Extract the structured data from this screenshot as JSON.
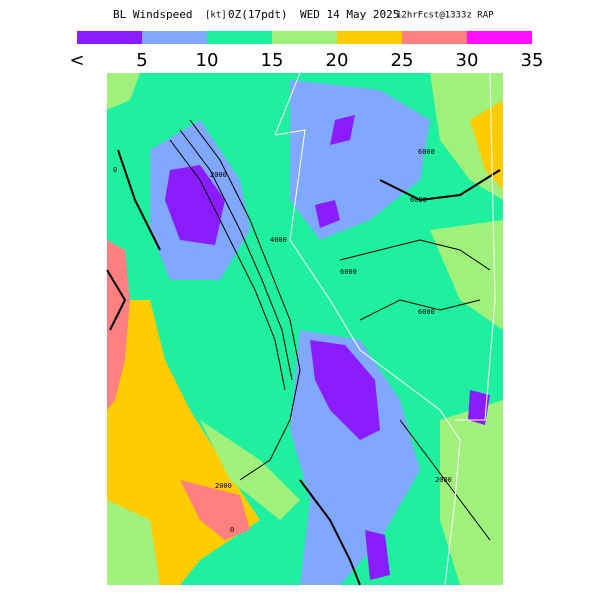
{
  "header": {
    "title": "BL Windspeed",
    "units": "[kt]",
    "time": "0Z(17pdt)",
    "date": "WED 14 May 2025",
    "forecast": "12hrFcst@1333z RAP"
  },
  "legend": {
    "labels": [
      "<",
      "5",
      "10",
      "15",
      "20",
      "25",
      "30",
      "35"
    ],
    "colors": [
      "#8a1cff",
      "#80a8ff",
      "#1ff0a0",
      "#a0f07c",
      "#ffcc00",
      "#ff8080",
      "#ff10ff"
    ]
  },
  "map": {
    "contour_labels": [
      "6000",
      "6000",
      "6000",
      "6000",
      "4000",
      "2000",
      "2000",
      "2000",
      "0",
      "0"
    ]
  }
}
